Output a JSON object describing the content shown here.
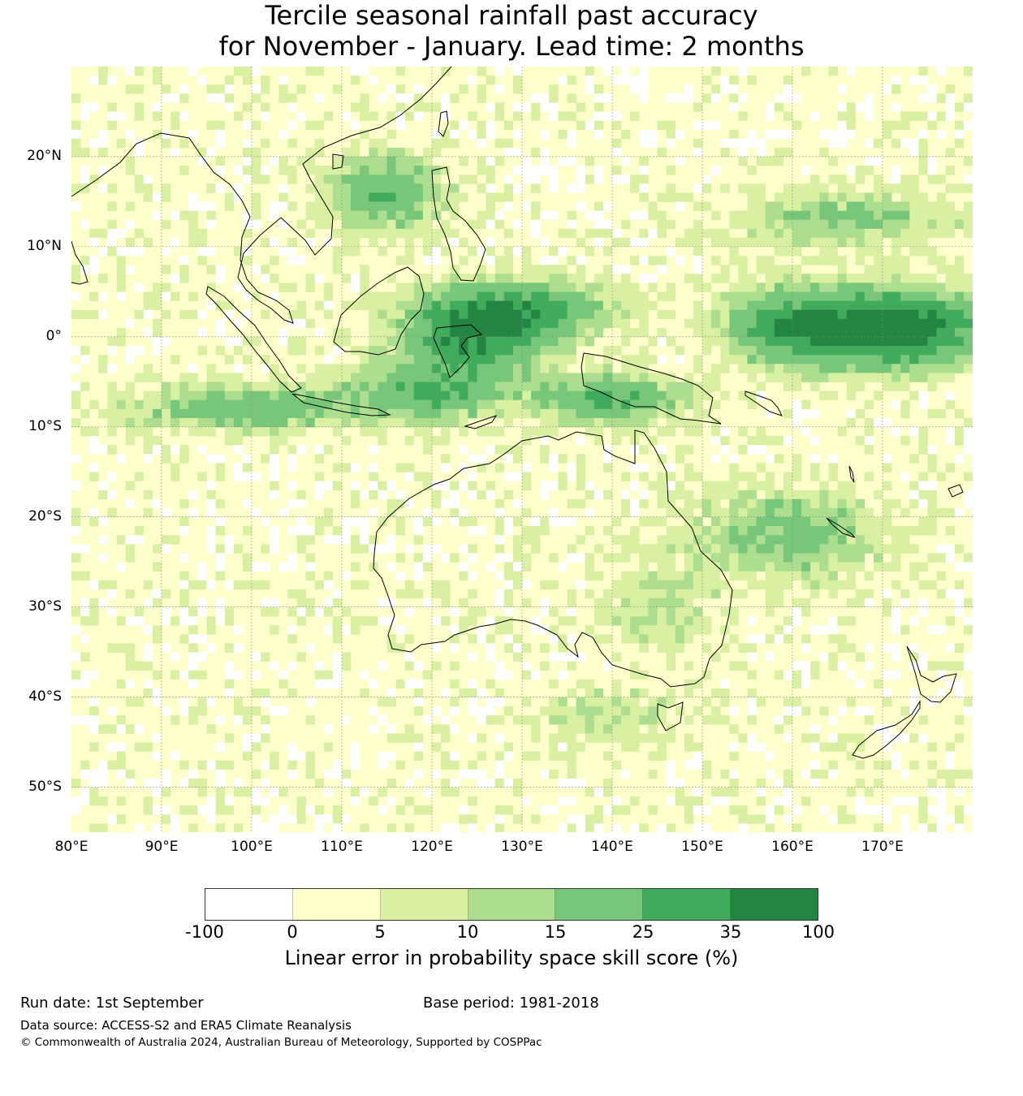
{
  "title": {
    "line1": "Tercile seasonal rainfall past accuracy",
    "line2": "for November - January. Lead time: 2 months"
  },
  "map": {
    "region": "Australia, South-East Asia and Western Pacific",
    "lon_range": [
      80,
      180
    ],
    "lat_range": [
      -55,
      30
    ],
    "lat_labels": [
      "20°N",
      "10°N",
      "0°",
      "10°S",
      "20°S",
      "30°S",
      "40°S",
      "50°S"
    ],
    "lon_labels": [
      "80°E",
      "90°E",
      "100°E",
      "110°E",
      "120°E",
      "130°E",
      "140°E",
      "150°E",
      "160°E",
      "170°E"
    ],
    "gridlines": true,
    "coastline_color": "#000000"
  },
  "colorbar": {
    "ticks": [
      "-100",
      "0",
      "5",
      "10",
      "15",
      "25",
      "35",
      "100"
    ],
    "colors": [
      "#ffffff",
      "#ffffcc",
      "#d9f0a3",
      "#addd8e",
      "#78c679",
      "#41ab5d",
      "#238443"
    ],
    "label": "Linear error in probability space skill score (%)"
  },
  "footer": {
    "run_date": "Run date: 1st September",
    "base_period": "Base period: 1981-2018",
    "data_source": "Data source: ACCESS-S2 and ERA5 Climate Reanalysis",
    "copyright": "© Commonwealth of Australia 2024, Australian Bureau of Meteorology, Supported by COSPPac"
  }
}
